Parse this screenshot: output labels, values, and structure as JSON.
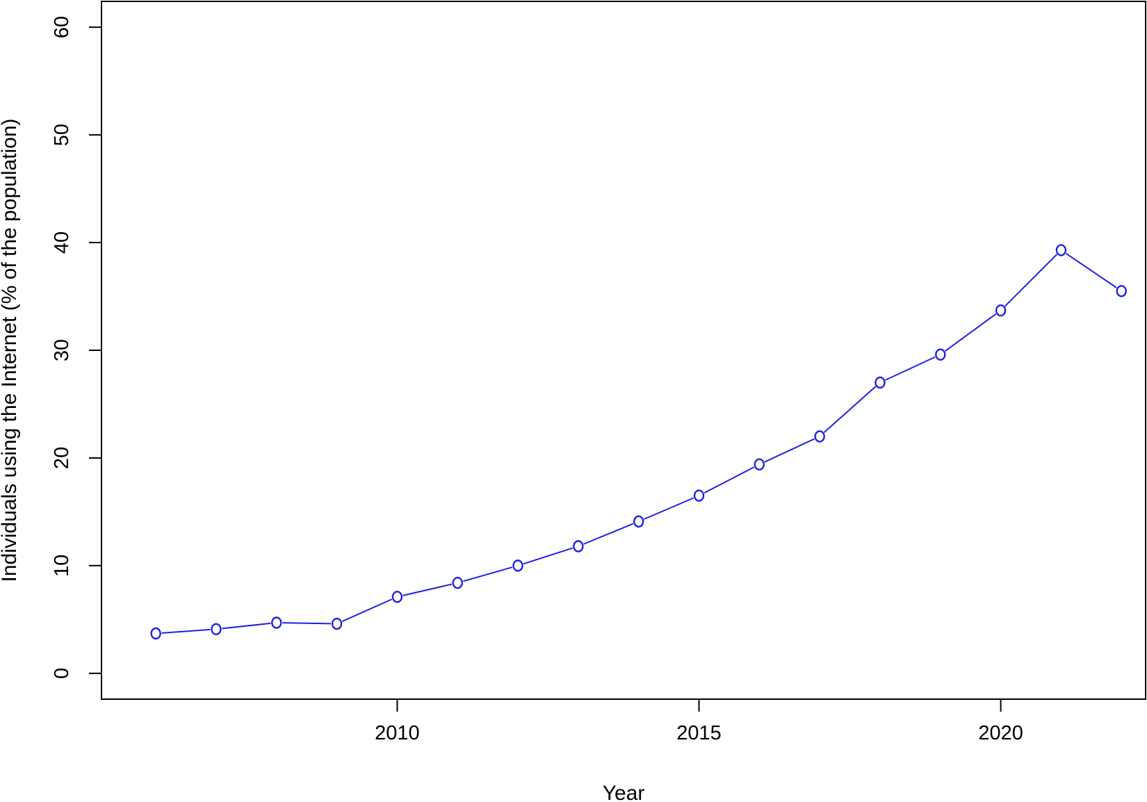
{
  "chart_data": {
    "type": "line",
    "title": "",
    "xlabel": "Year",
    "ylabel": "Individuals using the Internet (% of the population)",
    "xlim": [
      2005.1,
      2022.4
    ],
    "ylim": [
      -2.4,
      62.4
    ],
    "xticks": [
      2010,
      2015,
      2020
    ],
    "xtick_labels": [
      "2010",
      "2015",
      "2020"
    ],
    "yticks": [
      0,
      10,
      20,
      30,
      40,
      50,
      60
    ],
    "ytick_labels": [
      "0",
      "10",
      "20",
      "30",
      "40",
      "50",
      "60"
    ],
    "grid": false,
    "legend": "none",
    "series": [
      {
        "color": "#1f1fe6",
        "marker": "open-circle",
        "x": [
          2006,
          2007,
          2008,
          2009,
          2010,
          2011,
          2012,
          2013,
          2014,
          2015,
          2016,
          2017,
          2018,
          2019,
          2020,
          2021,
          2022
        ],
        "y": [
          3.7,
          4.1,
          4.7,
          4.6,
          7.1,
          8.4,
          10.0,
          11.8,
          14.1,
          16.5,
          19.4,
          22.0,
          27.0,
          29.6,
          33.7,
          39.3,
          35.5
        ]
      }
    ]
  }
}
